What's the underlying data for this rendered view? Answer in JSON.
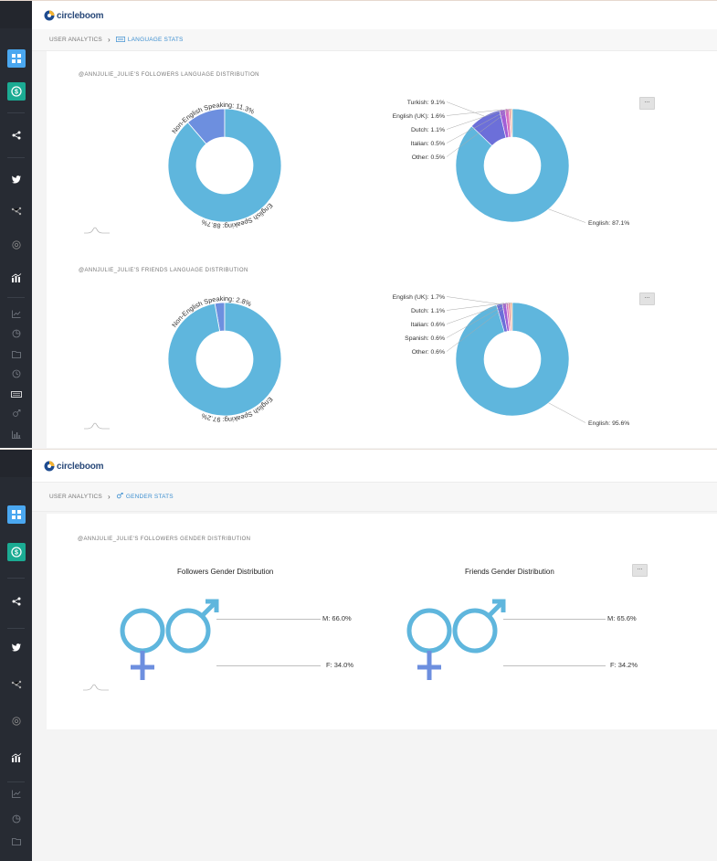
{
  "app": {
    "logo_text": "circleboom"
  },
  "colors": {
    "sidebar": "#272b33",
    "primary_blue": "#5fb6dd",
    "secondary_blue": "#6d8fdf",
    "accent_teal": "#1bab93",
    "accent_blue": "#4aa7f0",
    "link": "#3d8fd0"
  },
  "sidebar_icons": [
    "dashboard-icon",
    "dollar-icon",
    "share-icon",
    "twitter-icon",
    "network-icon",
    "target-icon",
    "analytics-icon",
    "line-chart-icon",
    "pie-chart-icon",
    "folder-chart-icon",
    "clock-chart-icon",
    "language-icon",
    "gender-icon",
    "bar-chart-icon"
  ],
  "language_page": {
    "breadcrumb": {
      "root": "USER ANALYTICS",
      "current": "LANGUAGE STATS",
      "current_icon": "abc-icon"
    },
    "followers_title": "@ANNJULIE_JULIE'S FOLLOWERS LANGUAGE DISTRIBUTION",
    "friends_title": "@ANNJULIE_JULIE'S FRIENDS LANGUAGE DISTRIBUTION",
    "more_label": "..."
  },
  "gender_page": {
    "breadcrumb": {
      "root": "USER ANALYTICS",
      "current": "GENDER STATS",
      "current_icon": "gender-icon"
    },
    "section_title": "@ANNJULIE_JULIE'S FOLLOWERS GENDER DISTRIBUTION",
    "more_label": "...",
    "followers_chart_title": "Followers Gender Distribution",
    "friends_chart_title": "Friends Gender Distribution",
    "followers": {
      "male_label": "M: 66.0%",
      "female_label": "F: 34.0%"
    },
    "friends": {
      "male_label": "M: 65.6%",
      "female_label": "F: 34.2%"
    }
  },
  "chart_data": [
    {
      "type": "pie",
      "variant": "donut",
      "title": "",
      "labels": [
        "Non-English Speaking",
        "English Speaking"
      ],
      "values": [
        11.3,
        88.7
      ],
      "data_labels": [
        "Non-English Speaking: 11.3%",
        "English Speaking: 88.7%"
      ],
      "colors": [
        "#6d8fdf",
        "#5fb6dd"
      ]
    },
    {
      "type": "pie",
      "variant": "donut",
      "title": "",
      "labels": [
        "English",
        "Turkish",
        "English (UK)",
        "Dutch",
        "Italian",
        "Other"
      ],
      "values": [
        87.1,
        9.1,
        1.6,
        1.1,
        0.5,
        0.5
      ],
      "data_labels": [
        "English: 87.1%",
        "Turkish: 9.1%",
        "English (UK): 1.6%",
        "Dutch: 1.1%",
        "Italian: 0.5%",
        "Other: 0.5%"
      ],
      "colors": [
        "#5fb6dd",
        "#6c6fd9",
        "#a15ed6",
        "#d96fc0",
        "#e68b95",
        "#efb48f"
      ]
    },
    {
      "type": "pie",
      "variant": "donut",
      "title": "",
      "labels": [
        "Non-English Speaking",
        "English Speaking"
      ],
      "values": [
        2.8,
        97.2
      ],
      "data_labels": [
        "Non-English Speaking: 2.8%",
        "English Speaking: 97.2%"
      ],
      "colors": [
        "#6d8fdf",
        "#5fb6dd"
      ]
    },
    {
      "type": "pie",
      "variant": "donut",
      "title": "",
      "labels": [
        "English",
        "English (UK)",
        "Dutch",
        "Italian",
        "Spanish",
        "Other"
      ],
      "values": [
        95.6,
        1.7,
        1.1,
        0.6,
        0.6,
        0.6
      ],
      "data_labels": [
        "English: 95.6%",
        "English (UK): 1.7%",
        "Dutch: 1.1%",
        "Italian: 0.6%",
        "Spanish: 0.6%",
        "Other: 0.6%"
      ],
      "colors": [
        "#5fb6dd",
        "#6c6fd9",
        "#a15ed6",
        "#d96fc0",
        "#e68b95",
        "#efb48f"
      ]
    },
    {
      "type": "pie",
      "title": "Followers Gender Distribution",
      "labels": [
        "M",
        "F"
      ],
      "values": [
        66.0,
        34.0
      ],
      "data_labels": [
        "M: 66.0%",
        "F: 34.0%"
      ]
    },
    {
      "type": "pie",
      "title": "Friends Gender Distribution",
      "labels": [
        "M",
        "F"
      ],
      "values": [
        65.6,
        34.2
      ],
      "data_labels": [
        "M: 65.6%",
        "F: 34.2%"
      ]
    }
  ]
}
